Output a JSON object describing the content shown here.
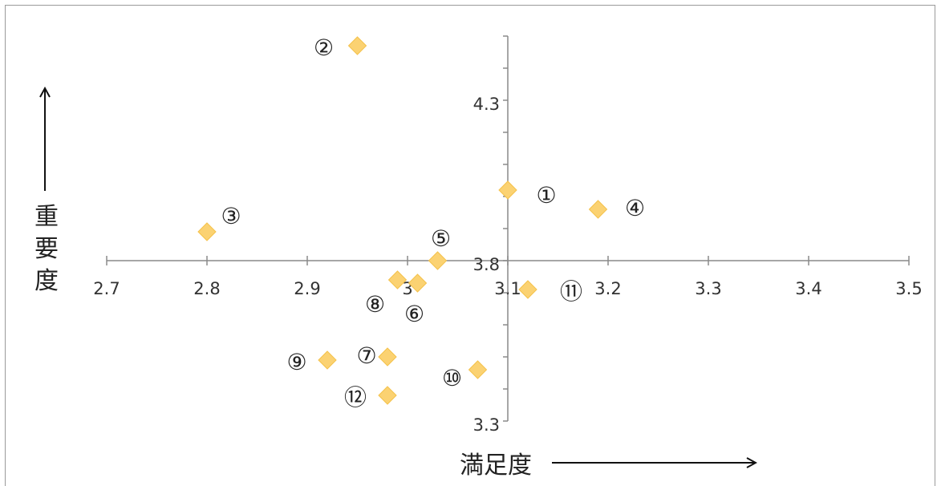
{
  "chart_data": {
    "type": "scatter",
    "xlabel": "満足度",
    "ylabel": "重要度",
    "xlim": [
      2.7,
      3.5
    ],
    "ylim": [
      3.3,
      4.5
    ],
    "x_ticks": [
      "2.7",
      "2.8",
      "2.9",
      "3",
      "3.1",
      "3.2",
      "3.3",
      "3.4",
      "3.5"
    ],
    "y_ticks": [
      "4.3",
      "3.8",
      "3.3"
    ],
    "marker_color": "#FBD272",
    "points": [
      {
        "label": "①",
        "x": 3.1,
        "y": 4.02
      },
      {
        "label": "②",
        "x": 2.95,
        "y": 4.47
      },
      {
        "label": "③",
        "x": 2.8,
        "y": 3.89
      },
      {
        "label": "④",
        "x": 3.19,
        "y": 3.96
      },
      {
        "label": "⑤",
        "x": 3.03,
        "y": 3.8
      },
      {
        "label": "⑥",
        "x": 3.01,
        "y": 3.73
      },
      {
        "label": "⑦",
        "x": 2.98,
        "y": 3.5
      },
      {
        "label": "⑧",
        "x": 2.99,
        "y": 3.74
      },
      {
        "label": "⑨",
        "x": 2.92,
        "y": 3.49
      },
      {
        "label": "⑩",
        "x": 3.07,
        "y": 3.46
      },
      {
        "label": "⑪",
        "x": 3.12,
        "y": 3.71
      },
      {
        "label": "⑫",
        "x": 2.98,
        "y": 3.38
      }
    ]
  }
}
